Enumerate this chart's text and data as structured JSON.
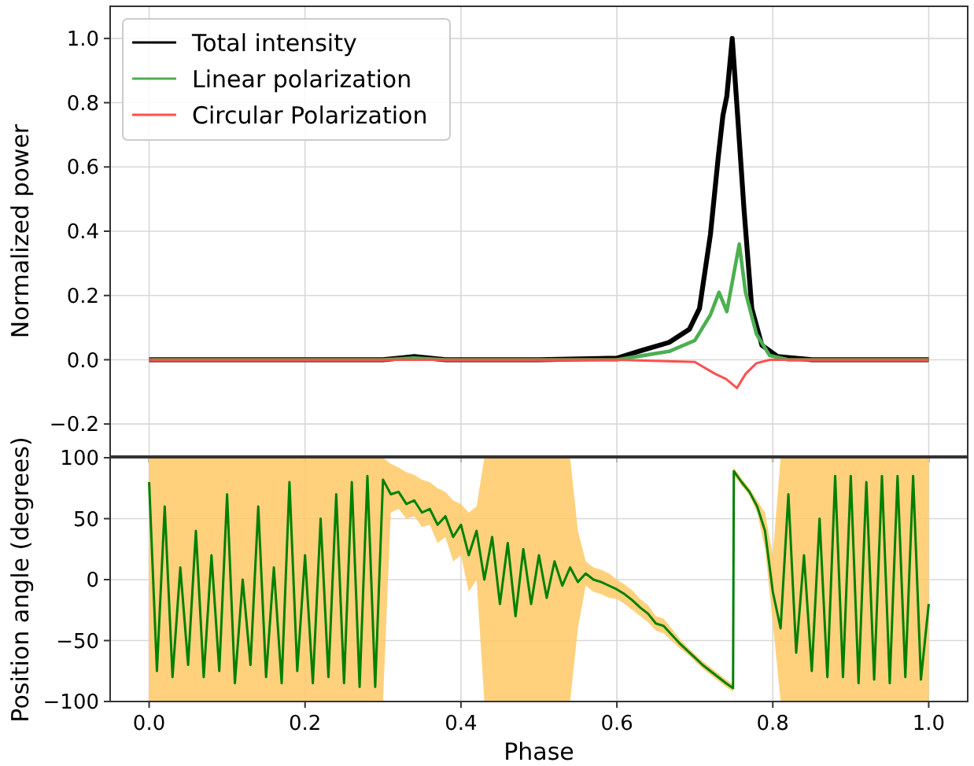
{
  "chart_data": [
    {
      "type": "line",
      "ylabel": "Normalized power",
      "xlim": [
        -0.05,
        1.05
      ],
      "xticks": [
        {
          "value": 0,
          "label": null
        },
        {
          "value": 0.2,
          "label": null
        },
        {
          "value": 0.4,
          "label": null
        },
        {
          "value": 0.6,
          "label": null
        },
        {
          "value": 0.8,
          "label": null
        },
        {
          "value": 1,
          "label": null
        }
      ],
      "ylim": [
        -0.3,
        1.1
      ],
      "yticks": [
        {
          "value": -0.2,
          "label": "−0.2"
        },
        {
          "value": 0,
          "label": "0.0"
        },
        0.2,
        0.4,
        0.6,
        0.8,
        {
          "value": 1,
          "label": "1.0"
        }
      ],
      "tick_labels": "y",
      "grid": true,
      "legend": "top left",
      "line_style": "solid",
      "series": [
        {
          "name": "Total intensity",
          "color": "#000000",
          "x": [
            0,
            0.3,
            0.34,
            0.38,
            0.5,
            0.6,
            0.633,
            0.667,
            0.693,
            0.706,
            0.72,
            0.73,
            0.736,
            0.741,
            0.748,
            0.756,
            0.763,
            0.773,
            0.786,
            0.806,
            0.85,
            1
          ],
          "values": [
            0,
            0,
            0.01,
            0,
            0,
            0.005,
            0.03,
            0.054,
            0.095,
            0.16,
            0.39,
            0.63,
            0.76,
            0.82,
            1,
            0.72,
            0.47,
            0.16,
            0.045,
            0.01,
            0,
            0
          ]
        },
        {
          "name": "Linear polarization",
          "color": "#4caf50",
          "x": [
            0,
            0.3,
            0.34,
            0.38,
            0.6,
            0.633,
            0.667,
            0.7,
            0.72,
            0.731,
            0.741,
            0.757,
            0.765,
            0.779,
            0.796,
            0.82,
            1
          ],
          "values": [
            0,
            0,
            0.005,
            0,
            0,
            0.013,
            0.026,
            0.06,
            0.14,
            0.21,
            0.15,
            0.36,
            0.21,
            0.08,
            0.013,
            0,
            0
          ]
        },
        {
          "name": "Circular Polarization",
          "color": "#ff5050",
          "x": [
            0,
            0.6,
            0.7,
            0.726,
            0.74,
            0.754,
            0.765,
            0.779,
            0.796,
            1
          ],
          "values": [
            0,
            0,
            -0.007,
            -0.044,
            -0.06,
            -0.088,
            -0.044,
            -0.011,
            0,
            0
          ]
        }
      ]
    },
    {
      "type": "line",
      "xlabel": "Phase",
      "ylabel": "Position angle (degrees)",
      "xlim": [
        -0.05,
        1.05
      ],
      "xticks": [
        {
          "value": 0,
          "label": "0.0"
        },
        0.2,
        0.4,
        0.6,
        0.8,
        {
          "value": 1,
          "label": "1.0"
        }
      ],
      "ylim": [
        -100,
        100
      ],
      "yticks": [
        {
          "value": -100,
          "label": "−100"
        },
        {
          "value": -50,
          "label": "−50"
        },
        0,
        50,
        100
      ],
      "grid": true,
      "line_style": "solid",
      "series": [
        {
          "color": "#008000",
          "x": [
            0,
            0.01,
            0.02,
            0.03,
            0.04,
            0.05,
            0.06,
            0.07,
            0.08,
            0.09,
            0.1,
            0.11,
            0.12,
            0.13,
            0.14,
            0.15,
            0.16,
            0.17,
            0.18,
            0.19,
            0.2,
            0.21,
            0.22,
            0.23,
            0.24,
            0.25,
            0.26,
            0.27,
            0.28,
            0.29,
            0.3,
            0.31,
            0.32,
            0.33,
            0.34,
            0.35,
            0.36,
            0.37,
            0.38,
            0.39,
            0.4,
            0.41,
            0.42,
            0.43,
            0.44,
            0.45,
            0.46,
            0.47,
            0.48,
            0.49,
            0.5,
            0.51,
            0.52,
            0.53,
            0.54,
            0.55,
            0.56,
            0.57,
            0.58,
            0.59,
            0.6,
            0.61,
            0.62,
            0.63,
            0.64,
            0.65,
            0.66,
            0.67,
            0.68,
            0.69,
            0.7,
            0.71,
            0.72,
            0.73,
            0.74,
            0.749,
            0.75,
            0.76,
            0.77,
            0.78,
            0.79,
            0.8,
            0.81,
            0.82,
            0.83,
            0.84,
            0.85,
            0.86,
            0.87,
            0.88,
            0.89,
            0.9,
            0.91,
            0.92,
            0.93,
            0.94,
            0.95,
            0.96,
            0.97,
            0.98,
            0.99,
            1
          ],
          "values": [
            80,
            -75,
            60,
            -80,
            10,
            -70,
            40,
            -80,
            20,
            -75,
            70,
            -85,
            0,
            -70,
            60,
            -80,
            10,
            -85,
            80,
            -75,
            20,
            -85,
            50,
            -80,
            70,
            -85,
            80,
            -88,
            85,
            -88,
            82,
            70,
            72,
            62,
            65,
            55,
            58,
            45,
            52,
            35,
            45,
            20,
            40,
            0,
            35,
            -20,
            30,
            -30,
            25,
            -20,
            20,
            -15,
            15,
            -5,
            10,
            -2,
            5,
            0,
            -2,
            -5,
            -8,
            -12,
            -17,
            -23,
            -28,
            -36,
            -38,
            -45,
            -52,
            -58,
            -64,
            -70,
            -75,
            -80,
            -85,
            -89,
            89,
            80,
            72,
            60,
            40,
            -10,
            -40,
            70,
            -60,
            20,
            -75,
            50,
            -80,
            85,
            -80,
            85,
            -85,
            80,
            -82,
            85,
            -85,
            85,
            -80,
            85,
            -82,
            -20
          ],
          "lower": [
            -100,
            -100,
            -100,
            -100,
            -100,
            -100,
            -100,
            -100,
            -100,
            -100,
            -100,
            -100,
            -100,
            -100,
            -100,
            -100,
            -100,
            -100,
            -100,
            -100,
            -100,
            -100,
            -100,
            -100,
            -100,
            -100,
            -100,
            -100,
            -100,
            -100,
            -100,
            55,
            58,
            50,
            52,
            43,
            45,
            30,
            35,
            15,
            20,
            -10,
            0,
            -100,
            -100,
            -100,
            -100,
            -100,
            -100,
            -100,
            -100,
            -100,
            -100,
            -100,
            -100,
            -40,
            -5,
            -10,
            -12,
            -15,
            -16,
            -20,
            -25,
            -30,
            -35,
            -42,
            -44,
            -50,
            -56,
            -61,
            -67,
            -73,
            -78,
            -83,
            -88,
            -92,
            86,
            77,
            69,
            55,
            25,
            -35,
            -100,
            -100,
            -100,
            -100,
            -100,
            -100,
            -100,
            -100,
            -100,
            -100,
            -100,
            -100,
            -100,
            -100,
            -100,
            -100,
            -100,
            -100,
            -100,
            -100
          ],
          "upper": [
            100,
            100,
            100,
            100,
            100,
            100,
            100,
            100,
            100,
            100,
            100,
            100,
            100,
            100,
            100,
            100,
            100,
            100,
            100,
            100,
            100,
            100,
            100,
            100,
            100,
            100,
            100,
            100,
            100,
            100,
            100,
            95,
            92,
            88,
            86,
            82,
            80,
            75,
            72,
            65,
            62,
            55,
            60,
            100,
            100,
            100,
            100,
            100,
            100,
            100,
            100,
            100,
            100,
            100,
            100,
            40,
            15,
            10,
            8,
            5,
            0,
            -4,
            -9,
            -16,
            -21,
            -30,
            -32,
            -40,
            -48,
            -55,
            -61,
            -67,
            -72,
            -77,
            -82,
            -86,
            92,
            83,
            75,
            65,
            55,
            20,
            100,
            100,
            100,
            100,
            100,
            100,
            100,
            100,
            100,
            100,
            100,
            100,
            100,
            100,
            100,
            100,
            100,
            100,
            100,
            100
          ]
        }
      ]
    }
  ]
}
